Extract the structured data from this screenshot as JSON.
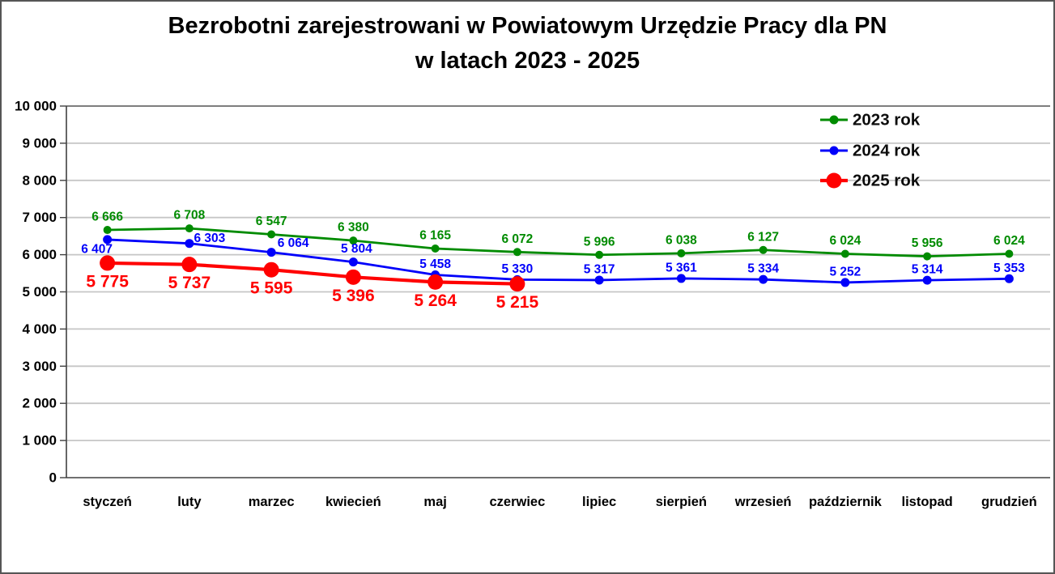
{
  "title": {
    "line1": "Bezrobotni zarejestrowani w Powiatowym Urzędzie Pracy dla PN",
    "line2": "w latach 2023 - 2025"
  },
  "chart_data": {
    "type": "line",
    "title": "Bezrobotni zarejestrowani w Powiatowym Urzędzie Pracy dla PN w latach 2023 - 2025",
    "categories": [
      "styczeń",
      "luty",
      "marzec",
      "kwiecień",
      "maj",
      "czerwiec",
      "lipiec",
      "sierpień",
      "wrzesień",
      "październik",
      "listopad",
      "grudzień"
    ],
    "series": [
      {
        "name": "2023 rok",
        "color": "#008B00",
        "line_width": 2.8,
        "marker_radius": 5,
        "values": [
          6666,
          6708,
          6547,
          6380,
          6165,
          6072,
          5996,
          6038,
          6127,
          6024,
          5956,
          6024
        ],
        "labels": [
          "6 666",
          "6 708",
          "6 547",
          "6 380",
          "6 165",
          "6 072",
          "5 996",
          "6 038",
          "6 127",
          "6 024",
          "5 956",
          "6 024"
        ],
        "label_font_size": 15.5,
        "label_offset_default": [
          0,
          -16
        ],
        "label_offsets": {}
      },
      {
        "name": "2024 rok",
        "color": "#0000FA",
        "line_width": 2.8,
        "marker_radius": 5.5,
        "values": [
          6407,
          6303,
          6064,
          5804,
          5458,
          5330,
          5317,
          5361,
          5334,
          5252,
          5314,
          5353
        ],
        "labels": [
          "6 407",
          "6 303",
          "6 064",
          "5 804",
          "5 458",
          "5 330",
          "5 317",
          "5 361",
          "5 334",
          "5 252",
          "5 314",
          "5 353"
        ],
        "label_font_size": 15.5,
        "label_offset_default": [
          0,
          -13
        ],
        "label_offsets": {
          "0": [
            -13,
            12
          ],
          "1": [
            25,
            -6
          ],
          "2": [
            27,
            -11
          ],
          "3": [
            4,
            -16
          ]
        }
      },
      {
        "name": "2025 rok",
        "color": "#FF0000",
        "line_width": 4.2,
        "marker_radius": 9.5,
        "values": [
          5775,
          5737,
          5595,
          5396,
          5264,
          5215
        ],
        "labels": [
          "5 775",
          "5 737",
          "5 595",
          "5 396",
          "5 264",
          "5 215"
        ],
        "label_font_size": 21,
        "label_offset_default": [
          0,
          23
        ],
        "label_offsets": {}
      }
    ],
    "xlabel": "",
    "ylabel": "",
    "ylim": [
      0,
      10000
    ],
    "ytick_step": 1000,
    "ytick_labels": [
      "0",
      "1 000",
      "2 000",
      "3 000",
      "4 000",
      "5 000",
      "6 000",
      "7 000",
      "8 000",
      "9 000",
      "10 000"
    ],
    "grid": "horizontal",
    "legend": {
      "position": "top-right",
      "items": [
        "2023 rok",
        "2024 rok",
        "2025 rok"
      ]
    }
  }
}
